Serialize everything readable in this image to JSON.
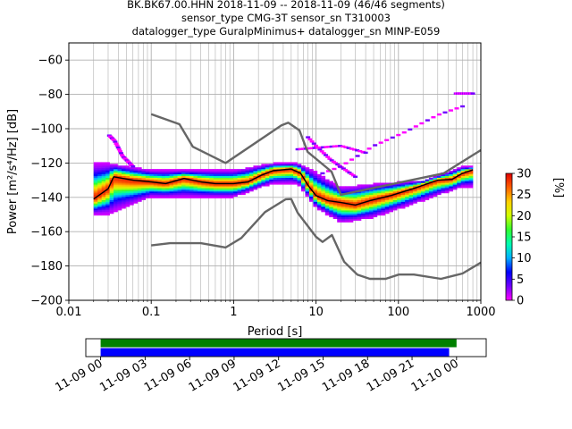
{
  "header": {
    "line1": "BK.BK67.00.HHN   2018-11-09 -- 2018-11-09  (46/46 segments)",
    "line2": "sensor_type CMG-3T sensor_sn T310003",
    "line3": "datalogger_type GuralpMinimus+ datalogger_sn MINP-E059"
  },
  "chart_data": [
    {
      "type": "heatmap",
      "xlabel": "Period [s]",
      "ylabel": "Power [m²/s⁴/Hz] [dB]",
      "xscale": "log",
      "xlim": [
        0.01,
        1000
      ],
      "ylim": [
        -200,
        -50
      ],
      "xticks": [
        {
          "v": 0.01,
          "label": "0.01"
        },
        {
          "v": 0.1,
          "label": "0.1"
        },
        {
          "v": 1,
          "label": "1"
        },
        {
          "v": 10,
          "label": "10"
        },
        {
          "v": 100,
          "label": "100"
        },
        {
          "v": 1000,
          "label": "1000"
        }
      ],
      "yticks": [
        {
          "v": -60,
          "label": "−60"
        },
        {
          "v": -80,
          "label": "−80"
        },
        {
          "v": -100,
          "label": "−100"
        },
        {
          "v": -120,
          "label": "−120"
        },
        {
          "v": -140,
          "label": "−140"
        },
        {
          "v": -160,
          "label": "−160"
        },
        {
          "v": -180,
          "label": "−180"
        },
        {
          "v": -200,
          "label": "−200"
        }
      ],
      "grid": true,
      "colorbar": {
        "label": "[%]",
        "range": [
          0,
          30
        ],
        "ticks": [
          {
            "v": 0,
            "label": "0"
          },
          {
            "v": 5,
            "label": "5"
          },
          {
            "v": 10,
            "label": "10"
          },
          {
            "v": 15,
            "label": "15"
          },
          {
            "v": 20,
            "label": "20"
          },
          {
            "v": 25,
            "label": "25"
          },
          {
            "v": 30,
            "label": "30"
          }
        ],
        "colors": [
          "#ff00ff",
          "#7000ff",
          "#0000ff",
          "#00b0ff",
          "#00ffb0",
          "#30ff30",
          "#d0ff00",
          "#ffd000",
          "#ff6000",
          "#e00000"
        ]
      },
      "noise_models": {
        "high": [
          [
            0.1,
            -91.5
          ],
          [
            0.22,
            -97.4
          ],
          [
            0.32,
            -110.5
          ],
          [
            0.8,
            -120
          ],
          [
            3.8,
            -98
          ],
          [
            4.6,
            -96.5
          ],
          [
            6.3,
            -101
          ],
          [
            7.9,
            -113.5
          ],
          [
            15.4,
            -125
          ],
          [
            20,
            -138.5
          ],
          [
            354.8,
            -126
          ],
          [
            1000,
            -112.5
          ]
        ],
        "low": [
          [
            0.1,
            -168
          ],
          [
            0.17,
            -166.7
          ],
          [
            0.4,
            -166.7
          ],
          [
            0.8,
            -169.2
          ],
          [
            1.24,
            -163.7
          ],
          [
            2.4,
            -148.6
          ],
          [
            4.3,
            -141.1
          ],
          [
            5,
            -141
          ],
          [
            6,
            -149
          ],
          [
            10,
            -163
          ],
          [
            12,
            -166
          ],
          [
            15.6,
            -162
          ],
          [
            21.9,
            -177.5
          ],
          [
            31.6,
            -185
          ],
          [
            45,
            -187.5
          ],
          [
            70,
            -187.5
          ],
          [
            101,
            -185
          ],
          [
            154,
            -185
          ],
          [
            328,
            -187.5
          ],
          [
            600,
            -184.4
          ],
          [
            1000,
            -178
          ]
        ]
      },
      "median_curve": [
        [
          0.02,
          -141
        ],
        [
          0.03,
          -135
        ],
        [
          0.035,
          -128
        ],
        [
          0.06,
          -130
        ],
        [
          0.1,
          -131
        ],
        [
          0.15,
          -132
        ],
        [
          0.25,
          -129
        ],
        [
          0.4,
          -131
        ],
        [
          0.6,
          -132
        ],
        [
          1,
          -132
        ],
        [
          1.5,
          -131
        ],
        [
          2.2,
          -127
        ],
        [
          3,
          -124.5
        ],
        [
          5,
          -123.5
        ],
        [
          6.5,
          -126
        ],
        [
          8,
          -133
        ],
        [
          10,
          -139
        ],
        [
          14,
          -142
        ],
        [
          20,
          -143
        ],
        [
          30,
          -144.5
        ],
        [
          45,
          -142
        ],
        [
          80,
          -139
        ],
        [
          150,
          -135
        ],
        [
          300,
          -130
        ],
        [
          450,
          -129.5
        ],
        [
          600,
          -126
        ],
        [
          800,
          -124
        ]
      ],
      "spread_curves": [
        {
          "range": "upper",
          "points": [
            [
              0.03,
              -120
            ],
            [
              0.1,
              -124
            ],
            [
              0.3,
              -124
            ],
            [
              1,
              -124
            ],
            [
              3,
              -120
            ],
            [
              6,
              -120
            ],
            [
              10,
              -125
            ],
            [
              20,
              -134
            ],
            [
              50,
              -132
            ],
            [
              200,
              -130
            ],
            [
              600,
              -122
            ]
          ]
        },
        {
          "range": "lower",
          "points": [
            [
              0.03,
              -150
            ],
            [
              0.1,
              -140
            ],
            [
              0.3,
              -140
            ],
            [
              1,
              -140
            ],
            [
              3,
              -132
            ],
            [
              6,
              -132
            ],
            [
              10,
              -146
            ],
            [
              20,
              -155
            ],
            [
              50,
              -152
            ],
            [
              200,
              -142
            ],
            [
              600,
              -134
            ]
          ]
        }
      ],
      "outlier_streaks": [
        [
          [
            0.031,
            -104
          ],
          [
            0.036,
            -107
          ],
          [
            0.045,
            -116
          ],
          [
            0.06,
            -122
          ]
        ],
        [
          [
            8,
            -105
          ],
          [
            10,
            -110
          ],
          [
            15,
            -118
          ],
          [
            30,
            -128
          ]
        ],
        [
          [
            12,
            -126
          ],
          [
            20,
            -122
          ],
          [
            50,
            -110
          ],
          [
            120,
            -102
          ],
          [
            300,
            -92
          ],
          [
            600,
            -87
          ]
        ],
        [
          [
            6,
            -112
          ],
          [
            20,
            -110
          ],
          [
            40,
            -114
          ]
        ],
        [
          [
            500,
            -79.5
          ],
          [
            800,
            -79.5
          ]
        ]
      ]
    },
    {
      "type": "timeline",
      "xlim": [
        "2018-11-08 23:00",
        "2018-11-10 02:00"
      ],
      "xticks": [
        {
          "v": "2018-11-09 00:00",
          "label": "11-09 00"
        },
        {
          "v": "2018-11-09 03:00",
          "label": "11-09 03"
        },
        {
          "v": "2018-11-09 06:00",
          "label": "11-09 06"
        },
        {
          "v": "2018-11-09 09:00",
          "label": "11-09 09"
        },
        {
          "v": "2018-11-09 12:00",
          "label": "11-09 12"
        },
        {
          "v": "2018-11-09 15:00",
          "label": "11-09 15"
        },
        {
          "v": "2018-11-09 18:00",
          "label": "11-09 18"
        },
        {
          "v": "2018-11-09 21:00",
          "label": "11-09 21"
        },
        {
          "v": "2018-11-10 00:00",
          "label": "11-10 00"
        }
      ],
      "bars": [
        {
          "color": "#008000",
          "start": "2018-11-09 00:00",
          "end": "2018-11-10 00:00"
        },
        {
          "color": "#0000ff",
          "start": "2018-11-09 00:00",
          "end": "2018-11-09 23:30"
        }
      ]
    }
  ]
}
